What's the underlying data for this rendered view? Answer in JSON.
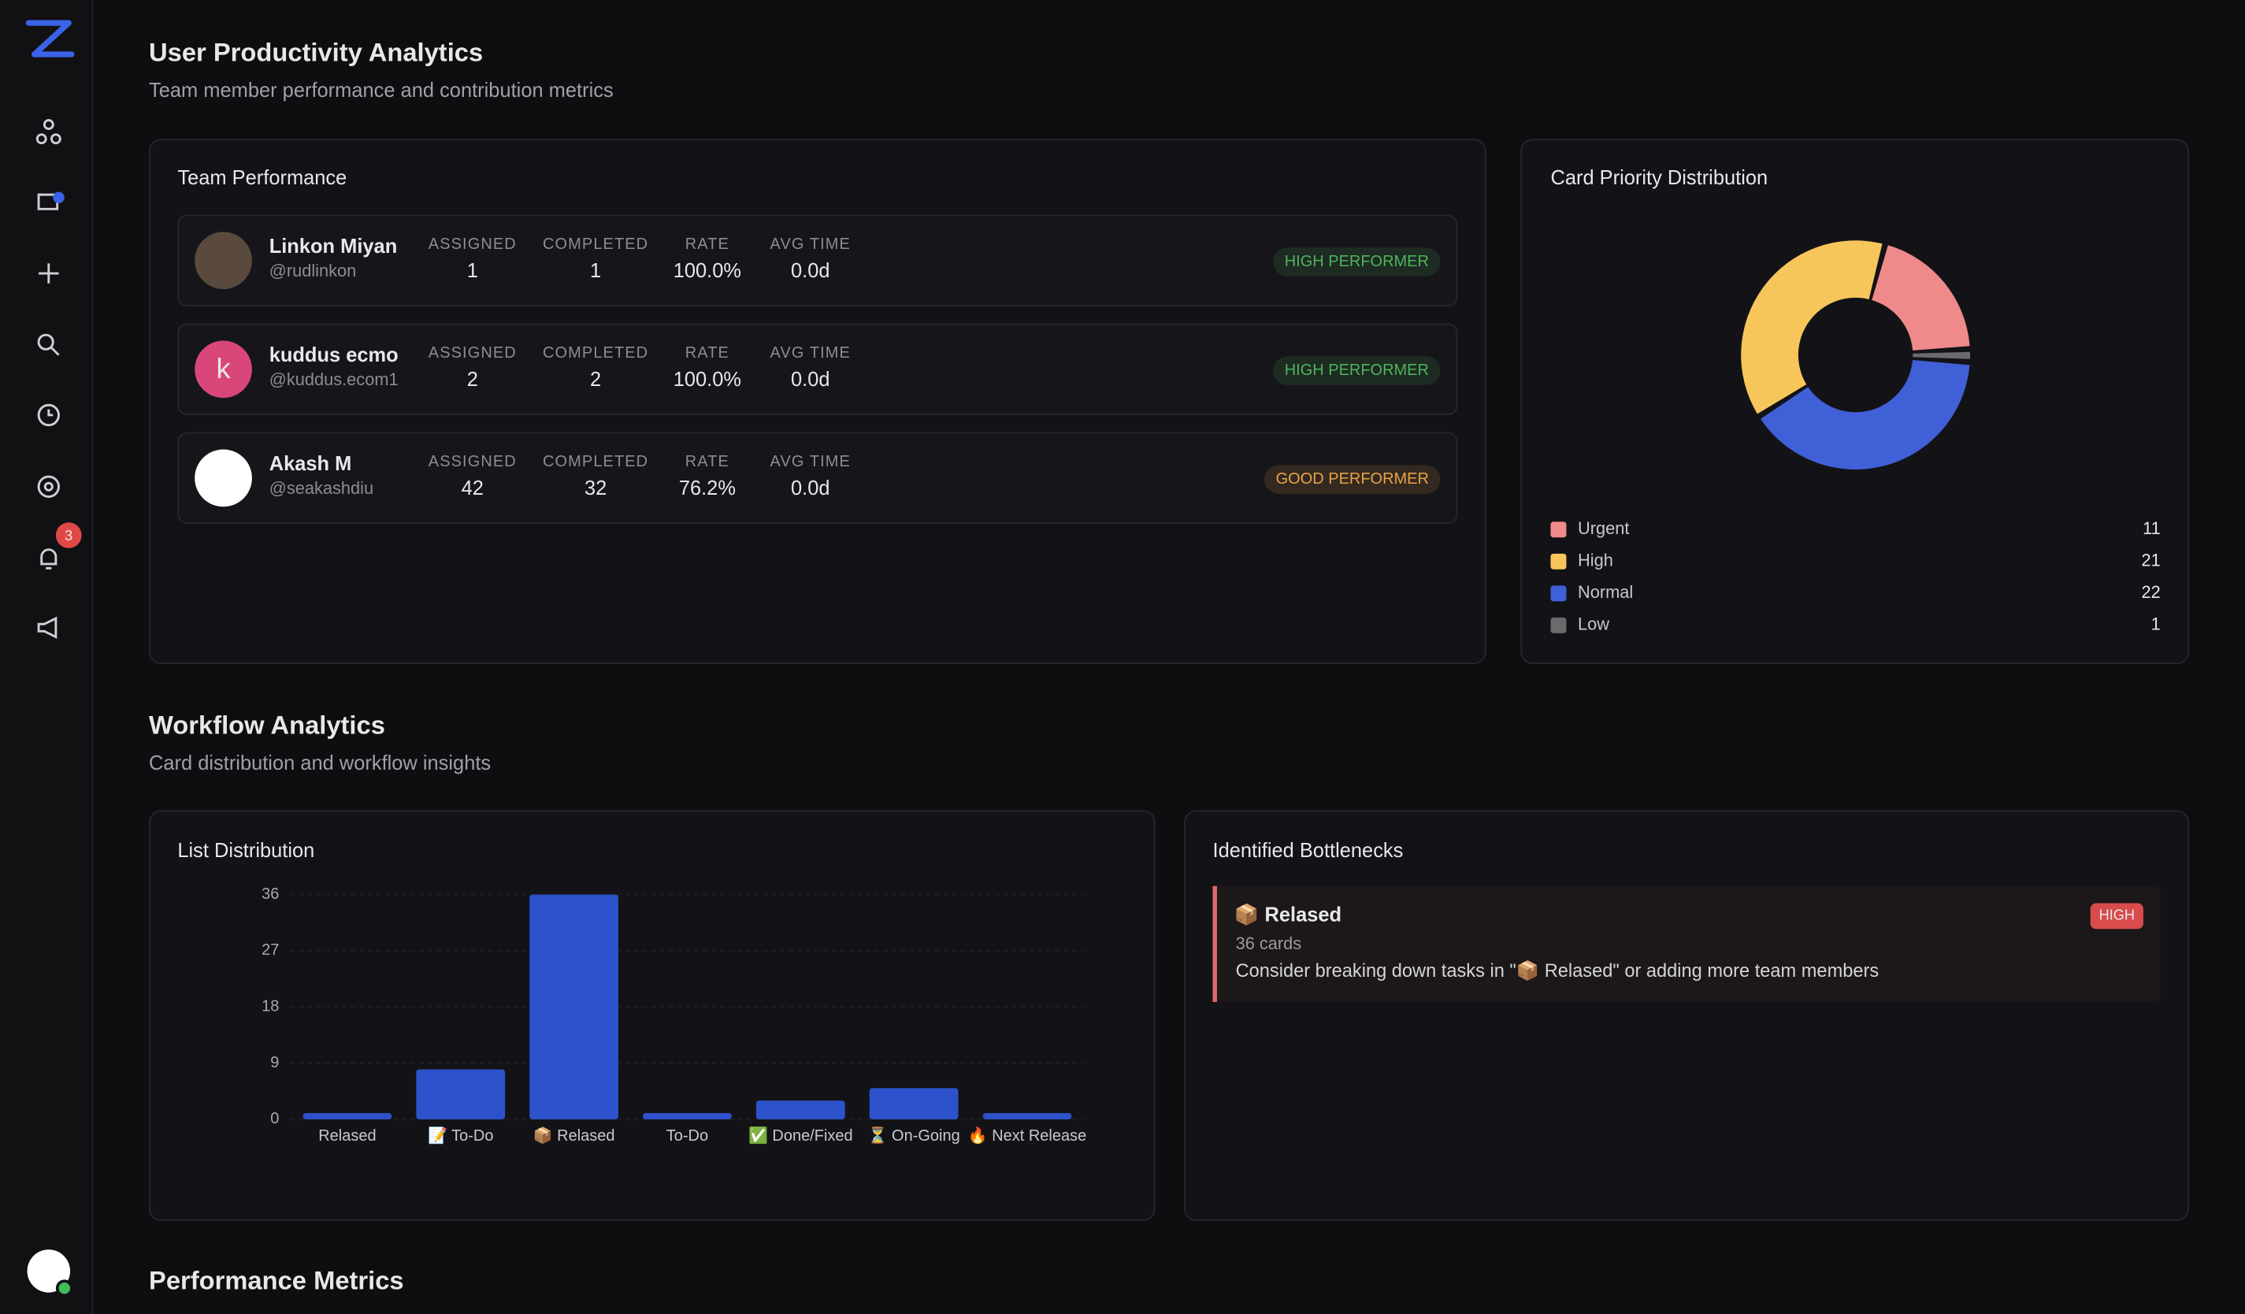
{
  "header": {
    "title": "User Productivity Analytics",
    "subtitle": "Team member performance and contribution metrics"
  },
  "sidebar": {
    "notifications": 3
  },
  "team": {
    "title": "Team Performance",
    "stat_labels": [
      "ASSIGNED",
      "COMPLETED",
      "RATE",
      "AVG TIME"
    ],
    "members": [
      {
        "name": "Linkon Miyan",
        "handle": "@rudlinkon",
        "stats": [
          1,
          1,
          "100.0%",
          "0.0d"
        ],
        "badge": "HIGH PERFORMER",
        "badge_color": "#4fb35a"
      },
      {
        "name": "kuddus ecmo",
        "handle": "@kuddus.ecom1",
        "avatar": "k",
        "stats": [
          2,
          2,
          "100.0%",
          "0.0d"
        ],
        "badge": "HIGH PERFORMER",
        "badge_color": "#4fb35a"
      },
      {
        "name": "Akash M",
        "handle": "@seakashdiu",
        "stats": [
          42,
          32,
          "76.2%",
          "0.0d"
        ],
        "badge": "GOOD PERFORMER",
        "badge_color": "#e8a245"
      }
    ]
  },
  "chart_data": [
    {
      "type": "donut",
      "title": "Card Priority Distribution",
      "categories": [
        "Urgent",
        "High",
        "Normal",
        "Low"
      ],
      "values": [
        11,
        21,
        22,
        1
      ],
      "colors": [
        "#ef8a8a",
        "#f7c65a",
        "#4060d8",
        "#6b6b6e"
      ]
    },
    {
      "type": "bar",
      "title": "List Distribution",
      "categories": [
        "Relased",
        "📝 To-Do",
        "📦 Relased",
        "To-Do",
        "✅ Done/Fixed",
        "⏳ On-Going",
        "🔥 Next Release"
      ],
      "values": [
        1,
        8,
        36,
        1,
        3,
        5,
        1
      ],
      "color": "#2d52cc",
      "ylim": [
        0,
        36
      ],
      "yticks": [
        0,
        9,
        18,
        27,
        36
      ],
      "grid": true
    }
  ],
  "workflow": {
    "title": "Workflow Analytics",
    "subtitle": "Card distribution and workflow insights"
  },
  "bottlenecks": {
    "title": "Identified Bottlenecks",
    "items": [
      {
        "name": "📦 Relased",
        "count": "36 cards",
        "advice": "Consider breaking down tasks in \"📦 Relased\" or adding more team members",
        "severity": "HIGH"
      }
    ]
  },
  "performance": {
    "title": "Performance Metrics"
  }
}
